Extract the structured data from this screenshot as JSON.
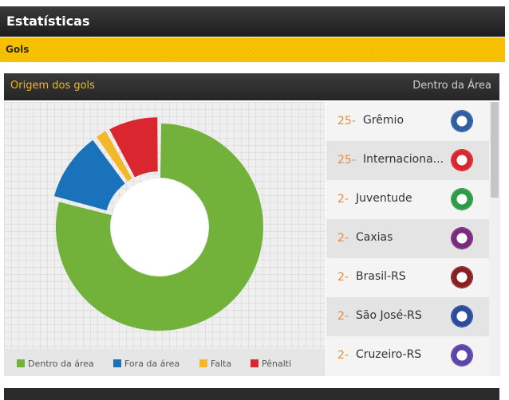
{
  "header": {
    "title": "Estatísticas"
  },
  "subheader": {
    "label": "Gols"
  },
  "panel": {
    "title": "Origem dos gols",
    "filter": "Dentro da Área"
  },
  "chart_data": {
    "type": "pie",
    "style": "donut",
    "categories": [
      "Dentro da área",
      "Fora da área",
      "Falta",
      "Pênalti"
    ],
    "values": [
      79,
      11,
      2,
      8
    ],
    "colors": [
      "#72b23b",
      "#1a72bb",
      "#f5b72a",
      "#d9262f"
    ],
    "highlighted": "Dentro da área",
    "legend_position": "bottom"
  },
  "teams": [
    {
      "pos": "25-",
      "name": "Grêmio",
      "icon": "gremio-badge-icon",
      "color": "#2f5fa1"
    },
    {
      "pos": "25-",
      "name": "Internaciona...",
      "icon": "internacional-badge-icon",
      "color": "#d9262f"
    },
    {
      "pos": "2-",
      "name": "Juventude",
      "icon": "juventude-badge-icon",
      "color": "#2e9a46"
    },
    {
      "pos": "2-",
      "name": "Caxias",
      "icon": "caxias-badge-icon",
      "color": "#7b2b7e"
    },
    {
      "pos": "2-",
      "name": "Brasil-RS",
      "icon": "brasil-rs-badge-icon",
      "color": "#8a1f22"
    },
    {
      "pos": "2-",
      "name": "São José-RS",
      "icon": "sao-jose-rs-badge-icon",
      "color": "#2a4c9c"
    },
    {
      "pos": "2-",
      "name": "Cruzeiro-RS",
      "icon": "cruzeiro-rs-badge-icon",
      "color": "#5b45a8"
    }
  ]
}
